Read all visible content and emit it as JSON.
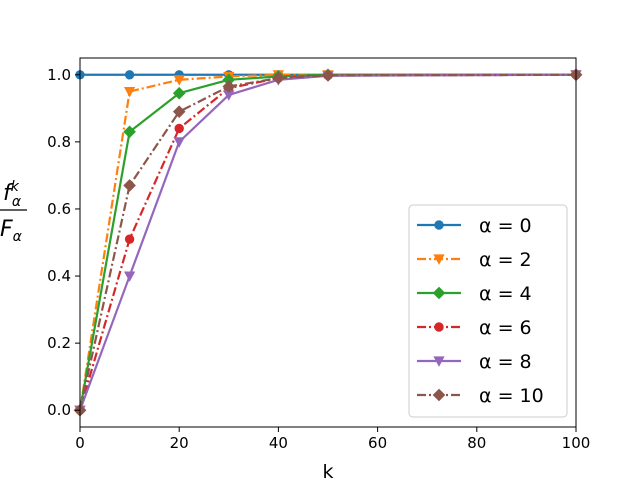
{
  "chart_data": {
    "type": "line",
    "xlabel": "k",
    "ylabel": {
      "numerator": "f",
      "numerator_sup": "k",
      "numerator_sub": "α",
      "denominator": "F",
      "denominator_sub": "α"
    },
    "xlim": [
      0,
      100
    ],
    "ylim": [
      -0.05,
      1.05
    ],
    "xticks": [
      0,
      20,
      40,
      60,
      80,
      100
    ],
    "yticks": [
      0.0,
      0.2,
      0.4,
      0.6,
      0.8,
      1.0
    ],
    "xtick_labels": [
      "0",
      "20",
      "40",
      "60",
      "80",
      "100"
    ],
    "ytick_labels": [
      "0.0",
      "0.2",
      "0.4",
      "0.6",
      "0.8",
      "1.0"
    ],
    "grid": false,
    "legend_position": "lower-right",
    "x": [
      0,
      10,
      20,
      30,
      40,
      50,
      100
    ],
    "series": [
      {
        "name": "α = 0",
        "color": "#1f77b4",
        "linestyle": "solid",
        "marker": "circle",
        "values": [
          1.0,
          1.0,
          1.0,
          1.0,
          1.0,
          1.0,
          1.0
        ]
      },
      {
        "name": "α = 2",
        "color": "#ff7f0e",
        "linestyle": "dashdot",
        "marker": "triangle-down",
        "values": [
          0.0,
          0.95,
          0.985,
          0.995,
          1.0,
          1.0,
          1.0
        ]
      },
      {
        "name": "α = 4",
        "color": "#2ca02c",
        "linestyle": "solid",
        "marker": "diamond",
        "values": [
          0.0,
          0.83,
          0.945,
          0.985,
          0.995,
          1.0,
          1.0
        ]
      },
      {
        "name": "α = 6",
        "color": "#d62728",
        "linestyle": "dashdot",
        "marker": "circle",
        "values": [
          0.0,
          0.51,
          0.84,
          0.96,
          0.99,
          0.998,
          1.0
        ]
      },
      {
        "name": "α = 8",
        "color": "#9467bd",
        "linestyle": "solid",
        "marker": "triangle-down",
        "values": [
          0.0,
          0.4,
          0.8,
          0.94,
          0.985,
          0.997,
          1.0
        ]
      },
      {
        "name": "α = 10",
        "color": "#8c564b",
        "linestyle": "dashdot",
        "marker": "diamond",
        "values": [
          0.0,
          0.67,
          0.89,
          0.965,
          0.99,
          0.998,
          1.0
        ]
      }
    ]
  }
}
